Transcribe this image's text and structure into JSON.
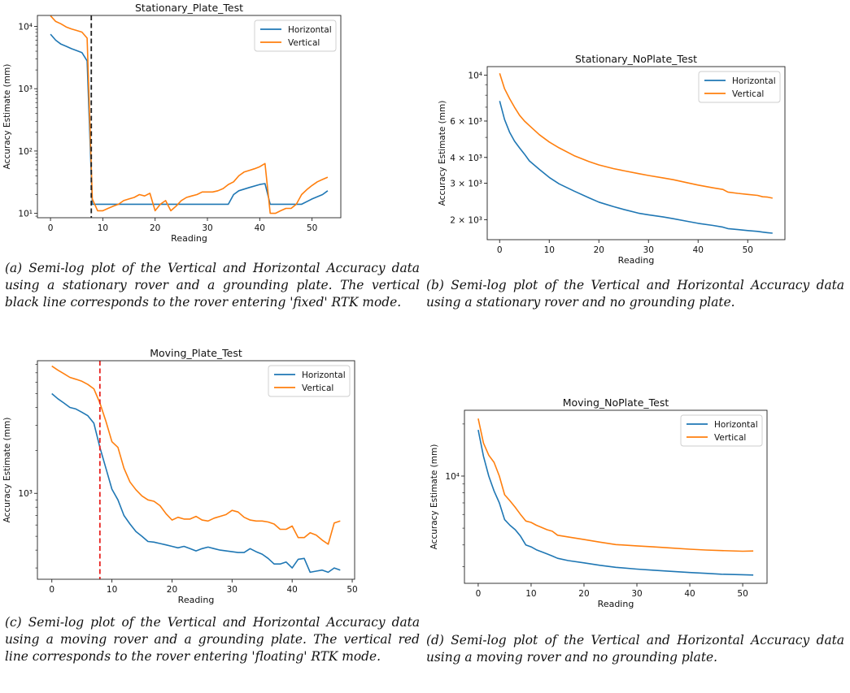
{
  "chart_data": [
    {
      "type": "line",
      "title": "Stationary_Plate_Test",
      "xlabel": "Reading",
      "ylabel": "Accuracy Estimate (mm)",
      "yscale": "log",
      "xlim": [
        -2.5,
        55.5
      ],
      "ylim": [
        8.5,
        15000
      ],
      "xticks": [
        0,
        10,
        20,
        30,
        40,
        50
      ],
      "xtick_labels": [
        "0",
        "10",
        "20",
        "30",
        "40",
        "50"
      ],
      "yticks": [
        10,
        100,
        1000,
        10000
      ],
      "ytick_labels": [
        "10¹",
        "10²",
        "10³",
        "10⁴"
      ],
      "legend": "top-right",
      "vline": {
        "x": 7.8,
        "color": "#222222",
        "style": "dashed"
      },
      "series": [
        {
          "name": "Horizontal",
          "color": "#1f77b4",
          "x": [
            0,
            1,
            2,
            3,
            4,
            5,
            6,
            7,
            8,
            9,
            10,
            12,
            14,
            16,
            18,
            20,
            22,
            24,
            26,
            28,
            30,
            32,
            34,
            35,
            36,
            38,
            40,
            41,
            42,
            44,
            46,
            47,
            48,
            50,
            52,
            53
          ],
          "y": [
            7500,
            6000,
            5200,
            4800,
            4400,
            4100,
            3800,
            2800,
            14,
            14,
            14,
            14,
            14,
            14,
            14,
            14,
            14,
            14,
            14,
            14,
            14,
            14,
            14,
            20,
            23,
            26,
            29,
            30,
            14,
            14,
            14,
            14,
            14,
            17,
            20,
            23
          ]
        },
        {
          "name": "Vertical",
          "color": "#ff7f0e",
          "x": [
            0,
            1,
            2,
            3,
            4,
            5,
            6,
            7,
            8,
            9,
            10,
            11,
            12,
            13,
            14,
            15,
            16,
            17,
            18,
            19,
            20,
            21,
            22,
            23,
            24,
            25,
            26,
            27,
            28,
            29,
            30,
            31,
            32,
            33,
            34,
            35,
            36,
            37,
            38,
            39,
            40,
            41,
            42,
            43,
            44,
            45,
            46,
            47,
            48,
            49,
            50,
            51,
            52,
            53
          ],
          "y": [
            14800,
            12000,
            11000,
            9800,
            9100,
            8600,
            8100,
            6500,
            17,
            11,
            11,
            12,
            13,
            14,
            16,
            17,
            18,
            20,
            19,
            21,
            11,
            14,
            16,
            11,
            13,
            16,
            18,
            19,
            20,
            22,
            22,
            22,
            23,
            25,
            29,
            32,
            40,
            46,
            49,
            52,
            56,
            63,
            10,
            10,
            11,
            12,
            12,
            14,
            20,
            24,
            28,
            32,
            35,
            38
          ]
        }
      ]
    },
    {
      "type": "line",
      "title": "Stationary_NoPlate_Test",
      "xlabel": "Reading",
      "ylabel": "Accuracy Estimate (mm)",
      "yscale": "log",
      "xlim": [
        -2.5,
        57.5
      ],
      "ylim": [
        1600,
        11000
      ],
      "xticks": [
        0,
        10,
        20,
        30,
        40,
        50
      ],
      "xtick_labels": [
        "0",
        "10",
        "20",
        "30",
        "40",
        "50"
      ],
      "yticks": [
        2000,
        3000,
        4000,
        6000,
        10000
      ],
      "ytick_labels": [
        "2 × 10³",
        "3 × 10³",
        "4 × 10³",
        "6 × 10³",
        "10⁴"
      ],
      "legend": "top-right",
      "series": [
        {
          "name": "Horizontal",
          "color": "#1f77b4",
          "x": [
            0,
            1,
            2,
            3,
            4,
            5,
            6,
            8,
            10,
            12,
            15,
            18,
            20,
            23,
            25,
            28,
            30,
            33,
            35,
            38,
            40,
            43,
            45,
            46,
            48,
            50,
            52,
            53,
            54,
            55
          ],
          "y": [
            7500,
            6100,
            5300,
            4800,
            4450,
            4150,
            3850,
            3500,
            3200,
            2980,
            2750,
            2550,
            2430,
            2310,
            2240,
            2150,
            2110,
            2060,
            2020,
            1960,
            1920,
            1875,
            1840,
            1810,
            1790,
            1770,
            1755,
            1740,
            1730,
            1720
          ]
        },
        {
          "name": "Vertical",
          "color": "#ff7f0e",
          "x": [
            0,
            1,
            2,
            3,
            4,
            5,
            6,
            8,
            10,
            12,
            15,
            18,
            20,
            23,
            25,
            28,
            30,
            33,
            35,
            38,
            40,
            43,
            45,
            46,
            48,
            50,
            52,
            53,
            54,
            55
          ],
          "y": [
            10200,
            8600,
            7700,
            7000,
            6400,
            6000,
            5700,
            5150,
            4750,
            4450,
            4080,
            3820,
            3680,
            3530,
            3450,
            3340,
            3270,
            3180,
            3120,
            3010,
            2940,
            2850,
            2800,
            2720,
            2680,
            2650,
            2620,
            2580,
            2570,
            2540
          ]
        }
      ]
    },
    {
      "type": "line",
      "title": "Moving_Plate_Test",
      "xlabel": "Reading",
      "ylabel": "Accuracy Estimate (mm)",
      "yscale": "log",
      "xlim": [
        -2.4,
        50.4
      ],
      "ylim": [
        250,
        8500
      ],
      "xticks": [
        0,
        10,
        20,
        30,
        40,
        50
      ],
      "xtick_labels": [
        "0",
        "10",
        "20",
        "30",
        "40",
        "50"
      ],
      "yticks": [
        1000
      ],
      "ytick_labels": [
        "10³"
      ],
      "legend": "top-right",
      "vline": {
        "x": 8,
        "color": "#e8211e",
        "style": "dashed"
      },
      "series": [
        {
          "name": "Horizontal",
          "color": "#1f77b4",
          "x": [
            0,
            1,
            2,
            3,
            4,
            5,
            6,
            7,
            8,
            9,
            10,
            11,
            12,
            13,
            14,
            15,
            16,
            17,
            18,
            19,
            20,
            21,
            22,
            23,
            24,
            25,
            26,
            27,
            28,
            29,
            30,
            31,
            32,
            33,
            34,
            35,
            36,
            37,
            38,
            39,
            40,
            41,
            42,
            43,
            44,
            45,
            46,
            47,
            48
          ],
          "y": [
            5000,
            4600,
            4300,
            4000,
            3900,
            3700,
            3500,
            3100,
            2100,
            1500,
            1070,
            900,
            700,
            610,
            540,
            500,
            460,
            455,
            445,
            435,
            425,
            415,
            425,
            410,
            395,
            410,
            420,
            410,
            400,
            395,
            390,
            385,
            385,
            410,
            390,
            375,
            350,
            320,
            320,
            330,
            300,
            345,
            350,
            280,
            285,
            290,
            280,
            300,
            290
          ]
        },
        {
          "name": "Vertical",
          "color": "#ff7f0e",
          "x": [
            0,
            1,
            2,
            3,
            4,
            5,
            6,
            7,
            8,
            9,
            10,
            11,
            12,
            13,
            14,
            15,
            16,
            17,
            18,
            19,
            20,
            21,
            22,
            23,
            24,
            25,
            26,
            27,
            28,
            29,
            30,
            31,
            32,
            33,
            34,
            35,
            36,
            37,
            38,
            39,
            40,
            41,
            42,
            43,
            44,
            45,
            46,
            47,
            48
          ],
          "y": [
            7800,
            7300,
            6900,
            6500,
            6300,
            6100,
            5800,
            5400,
            4300,
            3200,
            2300,
            2100,
            1500,
            1200,
            1060,
            960,
            900,
            880,
            820,
            720,
            650,
            680,
            660,
            660,
            690,
            650,
            640,
            670,
            690,
            710,
            760,
            740,
            680,
            650,
            640,
            640,
            630,
            610,
            560,
            560,
            590,
            490,
            490,
            530,
            510,
            470,
            440,
            620,
            640
          ]
        }
      ]
    },
    {
      "type": "line",
      "title": "Moving_NoPlate_Test",
      "xlabel": "Reading",
      "ylabel": "Accuracy Estimate (mm)",
      "yscale": "log",
      "xlim": [
        -2.6,
        54.6
      ],
      "ylim": [
        2400,
        24000
      ],
      "xticks": [
        0,
        10,
        20,
        30,
        40,
        50
      ],
      "xtick_labels": [
        "0",
        "10",
        "20",
        "30",
        "40",
        "50"
      ],
      "yticks": [
        10000
      ],
      "ytick_labels": [
        "10⁴"
      ],
      "legend": "top-right",
      "series": [
        {
          "name": "Horizontal",
          "color": "#1f77b4",
          "x": [
            0,
            1,
            2,
            3,
            4,
            5,
            6,
            7,
            8,
            9,
            10,
            11,
            12,
            13,
            14,
            15,
            17,
            20,
            23,
            26,
            30,
            33,
            36,
            40,
            43,
            46,
            50,
            52
          ],
          "y": [
            18500,
            13000,
            10000,
            8200,
            7000,
            5600,
            5200,
            4900,
            4500,
            4000,
            3900,
            3750,
            3650,
            3550,
            3450,
            3350,
            3250,
            3150,
            3050,
            2970,
            2900,
            2860,
            2820,
            2770,
            2740,
            2710,
            2690,
            2680
          ]
        },
        {
          "name": "Vertical",
          "color": "#ff7f0e",
          "x": [
            0,
            1,
            2,
            3,
            4,
            5,
            6,
            7,
            8,
            9,
            10,
            11,
            12,
            13,
            14,
            15,
            17,
            20,
            23,
            26,
            30,
            33,
            36,
            40,
            43,
            46,
            50,
            52
          ],
          "y": [
            21500,
            15500,
            13200,
            12000,
            10000,
            7800,
            7200,
            6600,
            6000,
            5500,
            5400,
            5200,
            5050,
            4900,
            4800,
            4550,
            4450,
            4300,
            4150,
            4020,
            3950,
            3900,
            3850,
            3780,
            3740,
            3710,
            3680,
            3690
          ]
        }
      ]
    }
  ],
  "captions": {
    "a": "(a) Semi-log plot of the Vertical and Horizontal Accuracy data using a stationary rover and a grounding plate. The vertical black line corresponds to the rover entering 'fixed' RTK mode.",
    "b": "(b) Semi-log plot of the Vertical and Horizontal Accuracy data using a stationary rover and no grounding plate.",
    "c": "(c) Semi-log plot of the Vertical and Horizontal Accuracy data using a moving rover and a grounding plate. The vertical red line corresponds to the rover entering 'floating' RTK mode.",
    "d": "(d) Semi-log plot of the Vertical and Horizontal Accuracy data using a moving rover and no grounding plate."
  }
}
